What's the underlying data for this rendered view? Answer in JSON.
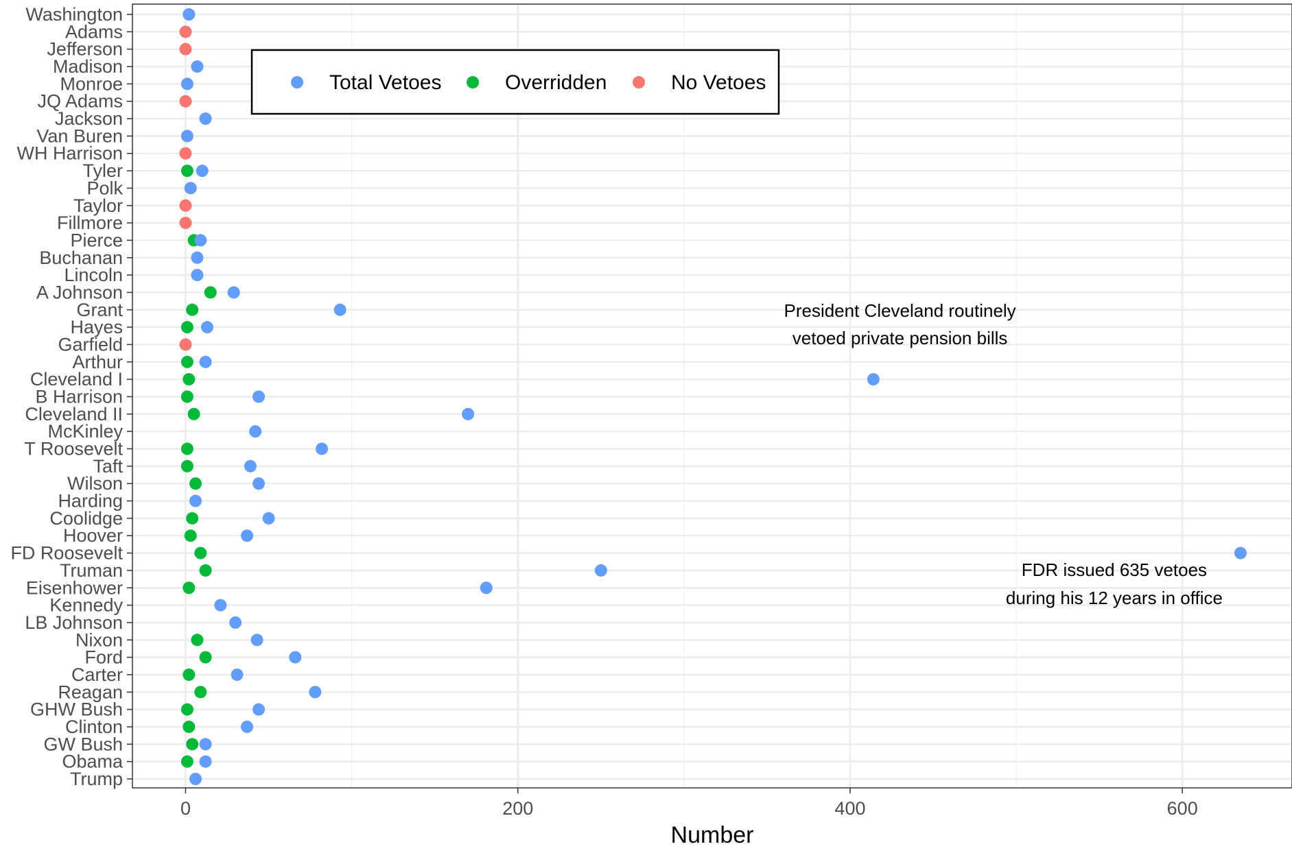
{
  "chart_data": {
    "type": "scatter",
    "xlabel": "Number",
    "ylabel": "",
    "xlim": [
      -32,
      666
    ],
    "xticks": [
      0,
      200,
      400,
      600
    ],
    "x_minor_ticks": [
      100,
      300,
      500
    ],
    "grid": true,
    "legend_position": "top-left",
    "categories": [
      "Washington",
      "Adams",
      "Jefferson",
      "Madison",
      "Monroe",
      "JQ Adams",
      "Jackson",
      "Van Buren",
      "WH Harrison",
      "Tyler",
      "Polk",
      "Taylor",
      "Fillmore",
      "Pierce",
      "Buchanan",
      "Lincoln",
      "A Johnson",
      "Grant",
      "Hayes",
      "Garfield",
      "Arthur",
      "Cleveland I",
      "B Harrison",
      "Cleveland II",
      "McKinley",
      "T Roosevelt",
      "Taft",
      "Wilson",
      "Harding",
      "Coolidge",
      "Hoover",
      "FD Roosevelt",
      "Truman",
      "Eisenhower",
      "Kennedy",
      "LB Johnson",
      "Nixon",
      "Ford",
      "Carter",
      "Reagan",
      "GHW Bush",
      "Clinton",
      "GW Bush",
      "Obama",
      "Trump"
    ],
    "series": [
      {
        "name": "Total Vetoes",
        "color": "#619CFF",
        "values": [
          2,
          null,
          null,
          7,
          1,
          null,
          12,
          1,
          null,
          10,
          3,
          null,
          null,
          9,
          7,
          7,
          29,
          93,
          13,
          null,
          12,
          414,
          44,
          170,
          42,
          82,
          39,
          44,
          6,
          50,
          37,
          635,
          250,
          181,
          21,
          30,
          43,
          66,
          31,
          78,
          44,
          37,
          12,
          12,
          6
        ]
      },
      {
        "name": "Overridden",
        "color": "#00BA38",
        "values": [
          null,
          null,
          null,
          null,
          null,
          null,
          null,
          null,
          null,
          1,
          null,
          null,
          null,
          5,
          null,
          null,
          15,
          4,
          1,
          null,
          1,
          2,
          1,
          5,
          null,
          1,
          1,
          6,
          null,
          4,
          3,
          9,
          12,
          2,
          null,
          null,
          7,
          12,
          2,
          9,
          1,
          2,
          4,
          1,
          null
        ]
      },
      {
        "name": "No Vetoes",
        "color": "#F8766D",
        "values": [
          null,
          0,
          0,
          null,
          null,
          0,
          null,
          null,
          0,
          null,
          null,
          0,
          0,
          null,
          null,
          null,
          null,
          null,
          null,
          0,
          null,
          null,
          null,
          null,
          null,
          null,
          null,
          null,
          null,
          null,
          null,
          null,
          null,
          null,
          null,
          null,
          null,
          null,
          null,
          null,
          null,
          null,
          null,
          null,
          null
        ]
      }
    ],
    "annotations": [
      {
        "lines": [
          "President Cleveland routinely",
          "vetoed private pension bills"
        ],
        "x": 430,
        "category": "Cleveland I"
      },
      {
        "lines": [
          "FDR issued 635 vetoes",
          "during his 12 years in office"
        ],
        "x": 559,
        "category": "Truman"
      }
    ]
  }
}
